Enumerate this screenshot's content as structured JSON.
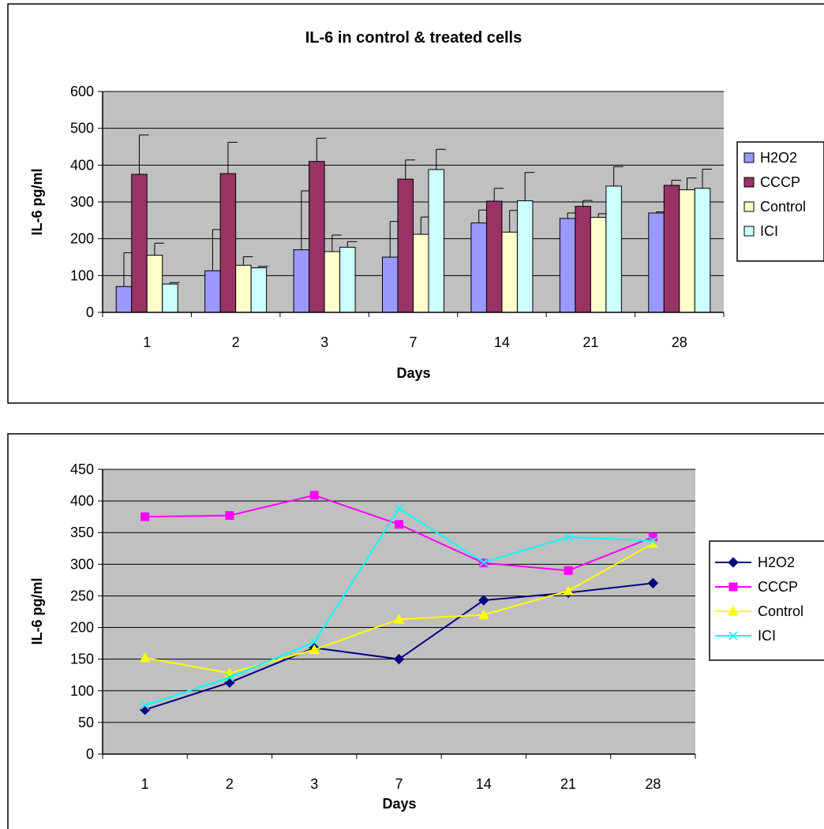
{
  "chart_data": [
    {
      "type": "bar",
      "title": "IL-6 in control & treated cells",
      "xlabel": "Days",
      "ylabel": "IL-6 pg/ml",
      "ylim": [
        0,
        600
      ],
      "ytick_step": 100,
      "grid": true,
      "legend_position": "right",
      "categories": [
        "1",
        "2",
        "3",
        "7",
        "14",
        "21",
        "28"
      ],
      "series": [
        {
          "name": "H2O2",
          "color": "#9999FF",
          "values": [
            70,
            113,
            170,
            150,
            243,
            255,
            270
          ],
          "errors": [
            92,
            112,
            160,
            97,
            35,
            15,
            3
          ]
        },
        {
          "name": "CCCP",
          "color": "#993366",
          "values": [
            375,
            377,
            410,
            362,
            302,
            288,
            345
          ],
          "errors": [
            107,
            85,
            63,
            52,
            35,
            16,
            14
          ]
        },
        {
          "name": "Control",
          "color": "#FFFFCC",
          "values": [
            155,
            128,
            165,
            212,
            218,
            258,
            333
          ],
          "errors": [
            33,
            23,
            45,
            47,
            59,
            10,
            32
          ]
        },
        {
          "name": "ICI",
          "color": "#CCFFFF",
          "values": [
            77,
            121,
            177,
            388,
            303,
            343,
            337
          ],
          "errors": [
            4,
            4,
            15,
            55,
            77,
            53,
            52
          ]
        }
      ]
    },
    {
      "type": "line",
      "title": "",
      "xlabel": "Days",
      "ylabel": "IL-6 pg/ml",
      "ylim": [
        0,
        450
      ],
      "ytick_step": 50,
      "grid": true,
      "legend_position": "right",
      "categories": [
        "1",
        "2",
        "3",
        "7",
        "14",
        "21",
        "28"
      ],
      "series": [
        {
          "name": "H2O2",
          "color": "#000080",
          "marker": "diamond",
          "values": [
            70,
            113,
            168,
            150,
            243,
            255,
            270
          ]
        },
        {
          "name": "CCCP",
          "color": "#FF00FF",
          "marker": "square",
          "values": [
            375,
            377,
            409,
            363,
            302,
            290,
            343
          ]
        },
        {
          "name": "Control",
          "color": "#FFFF00",
          "marker": "triangle",
          "values": [
            152,
            128,
            165,
            213,
            220,
            258,
            333
          ]
        },
        {
          "name": "ICI",
          "color": "#00FFFF",
          "marker": "x",
          "values": [
            77,
            121,
            177,
            388,
            303,
            343,
            337
          ]
        }
      ]
    }
  ]
}
